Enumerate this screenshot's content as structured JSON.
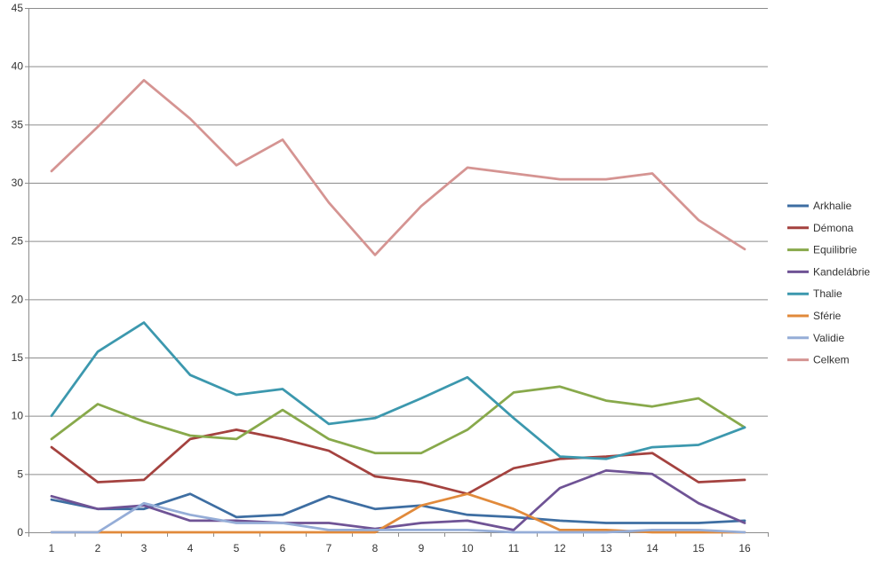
{
  "chart_data": {
    "type": "line",
    "x": [
      "1",
      "2",
      "3",
      "4",
      "5",
      "6",
      "7",
      "8",
      "9",
      "10",
      "11",
      "12",
      "13",
      "14",
      "15",
      "16"
    ],
    "ylim": [
      0,
      45
    ],
    "yticks": [
      "0",
      "5",
      "10",
      "15",
      "20",
      "25",
      "30",
      "35",
      "40",
      "45"
    ],
    "grid": true,
    "legend": "right",
    "title": "",
    "xlabel": "",
    "ylabel": "",
    "series": [
      {
        "name": "Arkhalie",
        "color": "#3E6EA2",
        "values": [
          2.8,
          2.0,
          2.0,
          3.3,
          1.3,
          1.5,
          3.1,
          2.0,
          2.3,
          1.5,
          1.3,
          1.0,
          0.8,
          0.8,
          0.8,
          1.0
        ]
      },
      {
        "name": "Démona",
        "color": "#A4423F",
        "values": [
          7.3,
          4.3,
          4.5,
          8.0,
          8.8,
          8.0,
          7.0,
          4.8,
          4.3,
          3.3,
          5.5,
          6.3,
          6.5,
          6.8,
          4.3,
          4.5
        ]
      },
      {
        "name": "Equilibrie",
        "color": "#88A94B",
        "values": [
          8.0,
          11.0,
          9.5,
          8.3,
          8.0,
          10.5,
          8.0,
          6.8,
          6.8,
          8.8,
          12.0,
          12.5,
          11.3,
          10.8,
          11.5,
          9.0
        ]
      },
      {
        "name": "Kandelábrie",
        "color": "#6F5395",
        "values": [
          3.1,
          2.0,
          2.3,
          1.0,
          1.0,
          0.8,
          0.8,
          0.3,
          0.8,
          1.0,
          0.2,
          3.8,
          5.3,
          5.0,
          2.5,
          0.8
        ]
      },
      {
        "name": "Thalie",
        "color": "#3C98AE",
        "values": [
          10.0,
          15.5,
          18.0,
          13.5,
          11.8,
          12.3,
          9.3,
          9.8,
          11.5,
          13.3,
          9.8,
          6.5,
          6.3,
          7.3,
          7.5,
          9.0
        ]
      },
      {
        "name": "Sférie",
        "color": "#E18A3B",
        "values": [
          0,
          0,
          0,
          0,
          0,
          0,
          0,
          0,
          2.3,
          3.3,
          2.0,
          0.2,
          0.2,
          0,
          0,
          0
        ]
      },
      {
        "name": "Validie",
        "color": "#95ADD7",
        "values": [
          0,
          0,
          2.5,
          1.5,
          0.8,
          0.8,
          0.2,
          0.2,
          0.2,
          0.2,
          0,
          0,
          0,
          0.2,
          0.2,
          0
        ]
      },
      {
        "name": "Celkem",
        "color": "#D59492",
        "values": [
          31.0,
          34.8,
          38.8,
          35.5,
          31.5,
          33.7,
          28.3,
          23.8,
          28.0,
          31.3,
          30.8,
          30.3,
          30.3,
          30.8,
          26.8,
          24.3
        ]
      }
    ]
  }
}
